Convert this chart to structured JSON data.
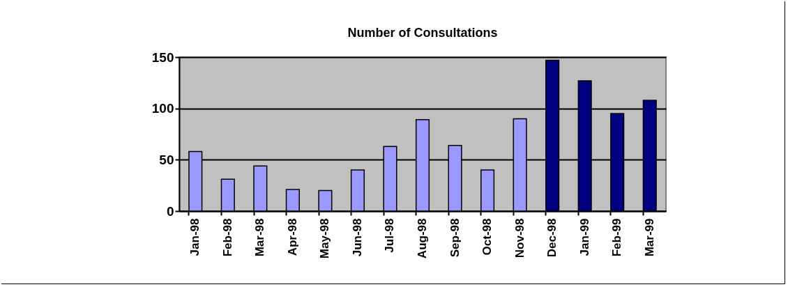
{
  "chart_data": {
    "type": "bar",
    "title": "Number of Consultations",
    "categories": [
      "Jan-98",
      "Feb-98",
      "Mar-98",
      "Apr-98",
      "May-98",
      "Jun-98",
      "Jul-98",
      "Aug-98",
      "Sep-98",
      "Oct-98",
      "Nov-98",
      "Dec-98",
      "Jan-99",
      "Feb-99",
      "Mar-99"
    ],
    "values": [
      58,
      31,
      44,
      21,
      20,
      40,
      63,
      89,
      64,
      40,
      90,
      147,
      127,
      95,
      108
    ],
    "colors": [
      "#9999ff",
      "#9999ff",
      "#9999ff",
      "#9999ff",
      "#9999ff",
      "#9999ff",
      "#9999ff",
      "#9999ff",
      "#9999ff",
      "#9999ff",
      "#9999ff",
      "#000080",
      "#000080",
      "#000080",
      "#000080"
    ],
    "ylim": [
      0,
      150
    ],
    "yticks": [
      0,
      50,
      100,
      150
    ],
    "grid": "y",
    "legend": false
  }
}
